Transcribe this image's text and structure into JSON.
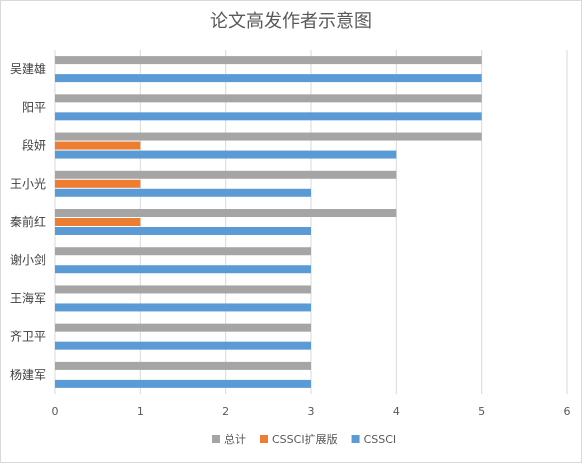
{
  "chart_data": {
    "type": "bar",
    "orientation": "horizontal",
    "title": "论文高发作者示意图",
    "categories": [
      "吴建雄",
      "阳平",
      "段妍",
      "王小光",
      "秦前红",
      "谢小剑",
      "王海军",
      "齐卫平",
      "杨建军"
    ],
    "series": [
      {
        "name": "总计",
        "values": [
          5,
          5,
          5,
          4,
          4,
          3,
          3,
          3,
          3
        ],
        "color": "#a5a5a5"
      },
      {
        "name": "CSSCI扩展版",
        "values": [
          0,
          0,
          1,
          1,
          1,
          0,
          0,
          0,
          0
        ],
        "color": "#ed7d31"
      },
      {
        "name": "CSSCI",
        "values": [
          5,
          5,
          4,
          3,
          3,
          3,
          3,
          3,
          3
        ],
        "color": "#5b9bd5"
      }
    ],
    "xlim": [
      0,
      6
    ],
    "xticks": [
      "0",
      "1",
      "2",
      "3",
      "4",
      "5",
      "6"
    ],
    "grid": "vertical",
    "legend_position": "bottom"
  }
}
